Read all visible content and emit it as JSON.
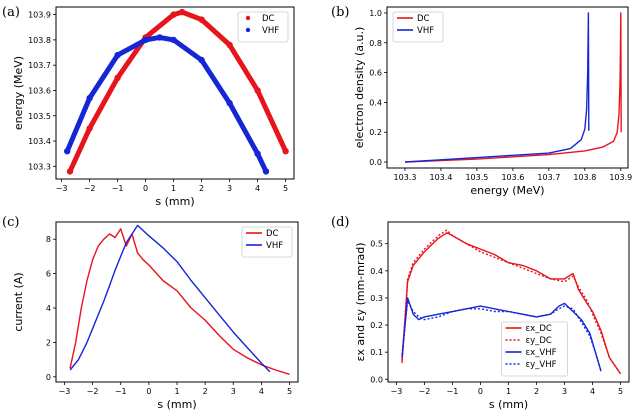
{
  "colors": {
    "dc": "#e8141c",
    "vhf": "#1426d6"
  },
  "chart_data": [
    {
      "id": "a",
      "panel_label": "(a)",
      "type": "scatter",
      "xlabel": "s (mm)",
      "ylabel": "energy (MeV)",
      "xlim": [
        -3.2,
        5.3
      ],
      "ylim": [
        103.25,
        103.93
      ],
      "xticks": [
        -3,
        -2,
        -1,
        0,
        1,
        2,
        3,
        4,
        5
      ],
      "xtick_labels": [
        "−3",
        "−2",
        "−1",
        "0",
        "1",
        "2",
        "3",
        "4",
        "5"
      ],
      "yticks": [
        103.3,
        103.4,
        103.5,
        103.6,
        103.7,
        103.8,
        103.9
      ],
      "ytick_labels": [
        "103.3",
        "103.4",
        "103.5",
        "103.6",
        "103.7",
        "103.8",
        "103.9"
      ],
      "legend": {
        "position": "top-right",
        "entries": [
          "DC",
          "VHF"
        ]
      },
      "series": [
        {
          "name": "DC",
          "color": "dc",
          "x": [
            -2.7,
            -2.0,
            -1.0,
            0.0,
            1.0,
            1.3,
            2.0,
            3.0,
            4.0,
            5.0
          ],
          "y": [
            103.28,
            103.45,
            103.65,
            103.81,
            103.9,
            103.91,
            103.88,
            103.78,
            103.6,
            103.36
          ]
        },
        {
          "name": "VHF",
          "color": "vhf",
          "x": [
            -2.8,
            -2.0,
            -1.0,
            0.0,
            0.5,
            1.0,
            2.0,
            3.0,
            4.0,
            4.3
          ],
          "y": [
            103.36,
            103.57,
            103.74,
            103.8,
            103.81,
            103.8,
            103.72,
            103.55,
            103.35,
            103.28
          ]
        }
      ]
    },
    {
      "id": "b",
      "panel_label": "(b)",
      "type": "line",
      "xlabel": "energy (MeV)",
      "ylabel": "electron density (a.u.)",
      "xlim": [
        103.25,
        103.92
      ],
      "ylim": [
        -0.04,
        1.04
      ],
      "xticks": [
        103.3,
        103.4,
        103.5,
        103.6,
        103.7,
        103.8,
        103.9
      ],
      "xtick_labels": [
        "103.3",
        "103.4",
        "103.5",
        "103.6",
        "103.7",
        "103.8",
        "103.9"
      ],
      "yticks": [
        0.0,
        0.2,
        0.4,
        0.6,
        0.8,
        1.0
      ],
      "ytick_labels": [
        "0.0",
        "0.2",
        "0.4",
        "0.6",
        "0.8",
        "1.0"
      ],
      "legend": {
        "position": "top-left",
        "entries": [
          "DC",
          "VHF"
        ]
      },
      "series": [
        {
          "name": "DC",
          "color": "dc",
          "x": [
            103.3,
            103.4,
            103.5,
            103.6,
            103.7,
            103.8,
            103.85,
            103.88,
            103.89,
            103.895,
            103.898,
            103.9,
            103.901
          ],
          "y": [
            0.0,
            0.01,
            0.02,
            0.035,
            0.05,
            0.075,
            0.1,
            0.14,
            0.2,
            0.32,
            0.55,
            1.0,
            0.2
          ]
        },
        {
          "name": "VHF",
          "color": "vhf",
          "x": [
            103.3,
            103.4,
            103.5,
            103.6,
            103.7,
            103.76,
            103.79,
            103.8,
            103.805,
            103.808,
            103.81,
            103.811
          ],
          "y": [
            0.0,
            0.015,
            0.03,
            0.045,
            0.06,
            0.09,
            0.15,
            0.22,
            0.35,
            0.6,
            1.0,
            0.21
          ]
        }
      ]
    },
    {
      "id": "c",
      "panel_label": "(c)",
      "type": "line",
      "xlabel": "s (mm)",
      "ylabel": "current (A)",
      "xlim": [
        -3.3,
        5.3
      ],
      "ylim": [
        -0.3,
        9.0
      ],
      "xticks": [
        -3,
        -2,
        -1,
        0,
        1,
        2,
        3,
        4,
        5
      ],
      "xtick_labels": [
        "−3",
        "−2",
        "−1",
        "0",
        "1",
        "2",
        "3",
        "4",
        "5"
      ],
      "yticks": [
        0,
        2,
        4,
        6,
        8
      ],
      "ytick_labels": [
        "0",
        "2",
        "4",
        "6",
        "8"
      ],
      "legend": {
        "position": "top-right",
        "entries": [
          "DC",
          "VHF"
        ]
      },
      "series": [
        {
          "name": "DC",
          "color": "dc",
          "x": [
            -2.8,
            -2.6,
            -2.4,
            -2.2,
            -2.0,
            -1.8,
            -1.6,
            -1.4,
            -1.2,
            -1.0,
            -0.8,
            -0.6,
            -0.4,
            -0.2,
            0.0,
            0.5,
            1.0,
            1.5,
            2.0,
            2.5,
            3.0,
            3.5,
            4.0,
            4.5,
            5.0
          ],
          "y": [
            0.5,
            2.0,
            4.0,
            5.6,
            6.8,
            7.6,
            8.0,
            8.3,
            8.1,
            8.6,
            7.6,
            8.3,
            7.2,
            6.8,
            6.5,
            5.6,
            5.0,
            4.0,
            3.3,
            2.4,
            1.6,
            1.1,
            0.7,
            0.4,
            0.15
          ]
        },
        {
          "name": "VHF",
          "color": "vhf",
          "x": [
            -2.8,
            -2.5,
            -2.2,
            -2.0,
            -1.8,
            -1.6,
            -1.4,
            -1.2,
            -1.0,
            -0.8,
            -0.6,
            -0.4,
            -0.2,
            0.0,
            0.5,
            1.0,
            1.5,
            2.0,
            2.5,
            3.0,
            3.5,
            4.0,
            4.3
          ],
          "y": [
            0.4,
            1.0,
            2.0,
            2.8,
            3.6,
            4.4,
            5.3,
            6.2,
            7.0,
            7.8,
            8.3,
            8.8,
            8.5,
            8.2,
            7.5,
            6.7,
            5.6,
            4.6,
            3.6,
            2.6,
            1.7,
            0.8,
            0.3
          ]
        }
      ]
    },
    {
      "id": "d",
      "panel_label": "(d)",
      "type": "line",
      "xlabel": "s (mm)",
      "ylabel": "εx and εy (mm-mrad)",
      "xlim": [
        -3.3,
        5.3
      ],
      "ylim": [
        -0.01,
        0.58
      ],
      "xticks": [
        -3,
        -2,
        -1,
        0,
        1,
        2,
        3,
        4,
        5
      ],
      "xtick_labels": [
        "−3",
        "−2",
        "−1",
        "0",
        "1",
        "2",
        "3",
        "4",
        "5"
      ],
      "yticks": [
        0.0,
        0.1,
        0.2,
        0.3,
        0.4,
        0.5
      ],
      "ytick_labels": [
        "0.0",
        "0.1",
        "0.2",
        "0.3",
        "0.4",
        "0.5"
      ],
      "legend": {
        "position": "bottom-center",
        "entries": [
          "εx_DC",
          "εy_DC",
          "εx_VHF",
          "εy_VHF"
        ]
      },
      "series": [
        {
          "name": "εx_DC",
          "color": "dc",
          "dashed": false,
          "x": [
            -2.8,
            -2.6,
            -2.4,
            -2.0,
            -1.5,
            -1.2,
            -1.0,
            -0.5,
            0.0,
            0.5,
            1.0,
            1.5,
            2.0,
            2.5,
            3.0,
            3.3,
            3.5,
            3.8,
            4.0,
            4.3,
            4.6,
            5.0
          ],
          "y": [
            0.06,
            0.36,
            0.42,
            0.47,
            0.52,
            0.54,
            0.53,
            0.5,
            0.48,
            0.46,
            0.43,
            0.42,
            0.4,
            0.37,
            0.37,
            0.39,
            0.33,
            0.28,
            0.25,
            0.18,
            0.08,
            0.02
          ]
        },
        {
          "name": "εy_DC",
          "color": "dc",
          "dashed": true,
          "x": [
            -2.8,
            -2.6,
            -2.4,
            -2.0,
            -1.5,
            -1.2,
            -1.0,
            -0.5,
            0.0,
            0.5,
            1.0,
            1.5,
            2.0,
            2.5,
            3.0,
            3.3,
            3.5,
            3.8,
            4.0,
            4.3,
            4.6,
            5.0
          ],
          "y": [
            0.07,
            0.37,
            0.43,
            0.48,
            0.53,
            0.55,
            0.53,
            0.5,
            0.47,
            0.45,
            0.43,
            0.41,
            0.39,
            0.37,
            0.36,
            0.38,
            0.34,
            0.29,
            0.24,
            0.17,
            0.08,
            0.02
          ]
        },
        {
          "name": "εx_VHF",
          "color": "vhf",
          "dashed": false,
          "x": [
            -2.8,
            -2.6,
            -2.4,
            -2.2,
            -2.0,
            -1.5,
            -1.0,
            -0.5,
            0.0,
            0.5,
            1.0,
            1.5,
            2.0,
            2.5,
            2.8,
            3.0,
            3.3,
            3.6,
            3.9,
            4.1,
            4.3
          ],
          "y": [
            0.08,
            0.3,
            0.24,
            0.22,
            0.23,
            0.24,
            0.25,
            0.26,
            0.27,
            0.26,
            0.25,
            0.24,
            0.23,
            0.24,
            0.27,
            0.28,
            0.25,
            0.22,
            0.17,
            0.1,
            0.03
          ]
        },
        {
          "name": "εy_VHF",
          "color": "vhf",
          "dashed": true,
          "x": [
            -2.8,
            -2.6,
            -2.4,
            -2.2,
            -2.0,
            -1.5,
            -1.0,
            -0.5,
            0.0,
            0.5,
            1.0,
            1.5,
            2.0,
            2.5,
            2.8,
            3.0,
            3.3,
            3.6,
            3.9,
            4.1,
            4.3
          ],
          "y": [
            0.09,
            0.29,
            0.25,
            0.23,
            0.22,
            0.23,
            0.25,
            0.26,
            0.26,
            0.25,
            0.25,
            0.24,
            0.23,
            0.24,
            0.26,
            0.27,
            0.26,
            0.21,
            0.16,
            0.1,
            0.03
          ]
        }
      ]
    }
  ]
}
